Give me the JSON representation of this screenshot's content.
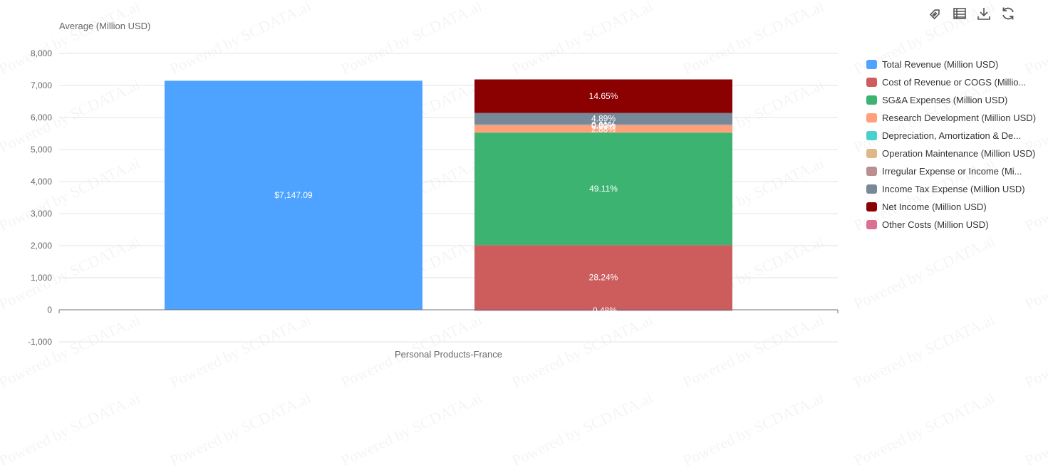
{
  "watermark": "Powered by SCDATA.ai",
  "toolbar": {
    "icons": [
      "tag-icon",
      "data-view-icon",
      "download-icon",
      "refresh-icon"
    ]
  },
  "chart_data": {
    "type": "bar",
    "stacked": true,
    "ylabel": "Average (Million USD)",
    "ylim": [
      -1000,
      8000
    ],
    "yticks": [
      -1000,
      0,
      1000,
      2000,
      3000,
      4000,
      5000,
      6000,
      7000,
      8000
    ],
    "ytick_labels": [
      "-1,000",
      "0",
      "1,000",
      "2,000",
      "3,000",
      "4,000",
      "5,000",
      "6,000",
      "7,000",
      "8,000"
    ],
    "categories": [
      "Personal Products-France"
    ],
    "grid": true,
    "legend_position": "right",
    "series": [
      {
        "name": "Total Revenue (Million USD)",
        "color": "#4da3ff",
        "value": 7147.09,
        "label": "$7,147.09",
        "stack": "revenue"
      },
      {
        "name": "Cost of Revenue or COGS (Millio...",
        "color": "#cd5c5c",
        "value": 2018.3,
        "label": "28.24%",
        "stack": "breakdown"
      },
      {
        "name": "SG&A Expenses (Million USD)",
        "color": "#3cb371",
        "value": 3509.9,
        "label": "49.11%",
        "stack": "breakdown"
      },
      {
        "name": "Research Development (Million USD)",
        "color": "#ffa07a",
        "value": 205.8,
        "label": "2.88%",
        "stack": "breakdown"
      },
      {
        "name": "Depreciation, Amortization & De...",
        "color": "#48d1cc",
        "value": 0,
        "label": "0.00%",
        "stack": "breakdown"
      },
      {
        "name": "Operation Maintenance (Million USD)",
        "color": "#deb887",
        "value": 14.3,
        "label": "0.20%",
        "stack": "breakdown"
      },
      {
        "name": "Irregular Expense or Income (Mi...",
        "color": "#bc8f8f",
        "value": 43.6,
        "label": "0.61%",
        "stack": "breakdown"
      },
      {
        "name": "Income Tax Expense (Million USD)",
        "color": "#778899",
        "value": 349.5,
        "label": "4.89%",
        "stack": "breakdown"
      },
      {
        "name": "Net Income (Million USD)",
        "color": "#8b0000",
        "value": 1047.0,
        "label": "14.65%",
        "stack": "breakdown"
      },
      {
        "name": "Other Costs (Million USD)",
        "color": "#db7093",
        "value": -34.3,
        "label": "-0.48%",
        "stack": "breakdown"
      }
    ]
  }
}
